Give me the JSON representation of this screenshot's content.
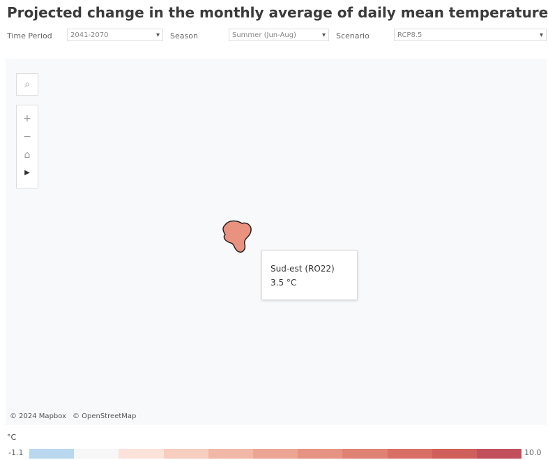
{
  "header": {
    "title": "Projected change in the monthly average of daily mean temperature"
  },
  "filters": [
    {
      "label": "Time Period",
      "value": "2041-2070"
    },
    {
      "label": "Season",
      "value": "Summer (Jun-Aug)"
    },
    {
      "label": "Scenario",
      "value": "RCP8.5"
    }
  ],
  "map": {
    "region_color": "#e8927f",
    "tooltip": {
      "name": "Sud-est (RO22)",
      "value": "3.5 °C"
    },
    "attribution": [
      "© 2024 Mapbox",
      "© OpenStreetMap"
    ]
  },
  "legend": {
    "unit": "°C",
    "min_label": "-1.1",
    "max_label": "10.0",
    "colors": [
      "#b9d8f0",
      "#f7f7f7",
      "#fbe2da",
      "#f6cdbf",
      "#f1b8a8",
      "#eca594",
      "#e69383",
      "#e08273",
      "#d96f64",
      "#d05f5c",
      "#c24f5c"
    ]
  }
}
